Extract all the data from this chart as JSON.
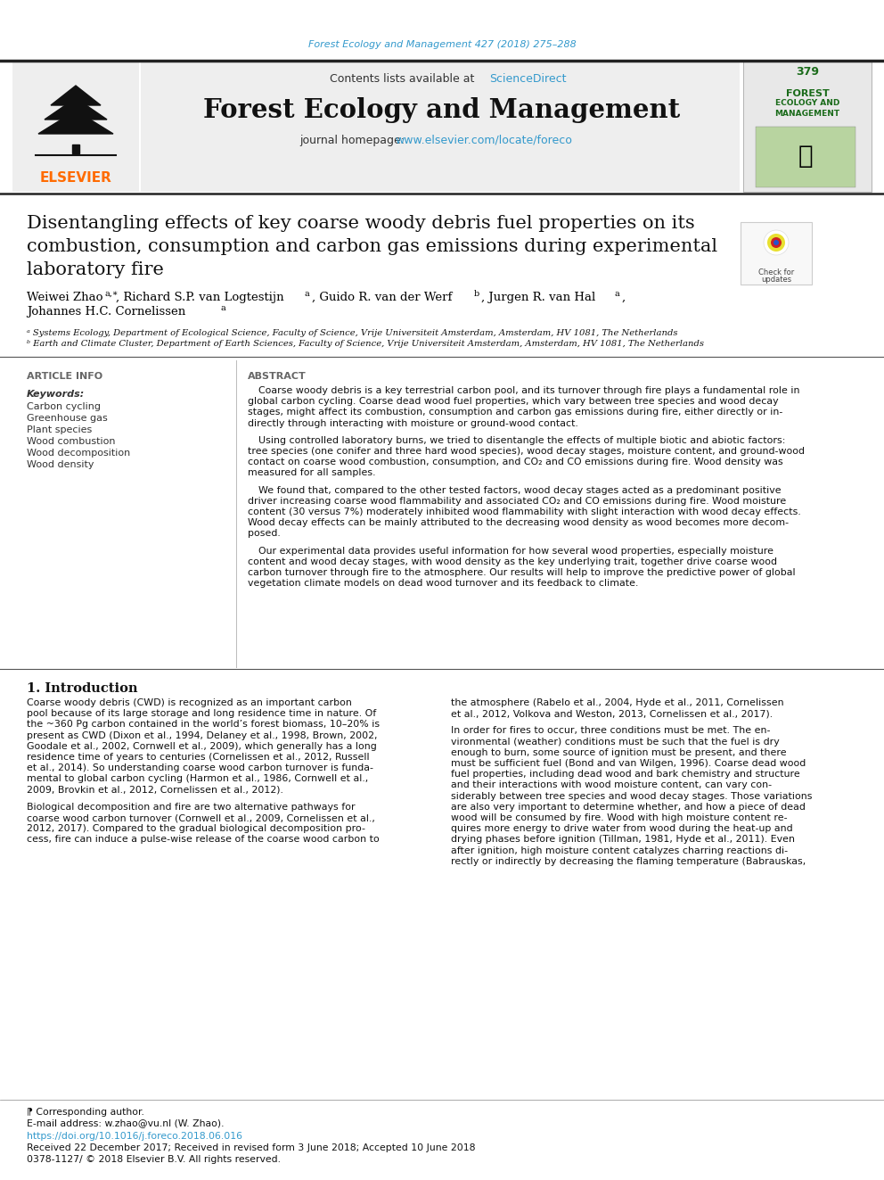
{
  "journal_header_text": "Forest Ecology and Management 427 (2018) 275–288",
  "journal_header_color": "#3399cc",
  "contents_text": "Contents lists available at ",
  "sciencedirect_text": "ScienceDirect",
  "journal_title": "Forest Ecology and Management",
  "homepage_label": "journal homepage: ",
  "homepage_url": "www.elsevier.com/locate/foreco",
  "homepage_color": "#3399cc",
  "article_title_line1": "Disentangling effects of key coarse woody debris fuel properties on its",
  "article_title_line2": "combustion, consumption and carbon gas emissions during experimental",
  "article_title_line3": "laboratory fire",
  "affil_a": "ᵃ Systems Ecology, Department of Ecological Science, Faculty of Science, Vrije Universiteit Amsterdam, Amsterdam, HV 1081, The Netherlands",
  "affil_b": "ᵇ Earth and Climate Cluster, Department of Earth Sciences, Faculty of Science, Vrije Universiteit Amsterdam, Amsterdam, HV 1081, The Netherlands",
  "article_info_label": "ARTICLE INFO",
  "keywords_label": "Keywords:",
  "keywords": [
    "Carbon cycling",
    "Greenhouse gas",
    "Plant species",
    "Wood combustion",
    "Wood decomposition",
    "Wood density"
  ],
  "abstract_label": "ABSTRACT",
  "abstract_p1": "Coarse woody debris is a key terrestrial carbon pool, and its turnover through fire plays a fundamental role in\nglobal carbon cycling. Coarse dead wood fuel properties, which vary between tree species and wood decay\nstages, might affect its combustion, consumption and carbon gas emissions during fire, either directly or in-\ndirectly through interacting with moisture or ground-wood contact.",
  "abstract_p2": "Using controlled laboratory burns, we tried to disentangle the effects of multiple biotic and abiotic factors:\ntree species (one conifer and three hard wood species), wood decay stages, moisture content, and ground-wood\ncontact on coarse wood combustion, consumption, and CO₂ and CO emissions during fire. Wood density was\nmeasured for all samples.",
  "abstract_p3": "We found that, compared to the other tested factors, wood decay stages acted as a predominant positive\ndriver increasing coarse wood flammability and associated CO₂ and CO emissions during fire. Wood moisture\ncontent (30 versus 7%) moderately inhibited wood flammability with slight interaction with wood decay effects.\nWood decay effects can be mainly attributed to the decreasing wood density as wood becomes more decom-\nposed.",
  "abstract_p4": "Our experimental data provides useful information for how several wood properties, especially moisture\ncontent and wood decay stages, with wood density as the key underlying trait, together drive coarse wood\ncarbon turnover through fire to the atmosphere. Our results will help to improve the predictive power of global\nvegetation climate models on dead wood turnover and its feedback to climate.",
  "section1_title": "1. Introduction",
  "intro_p1": "Coarse woody debris (CWD) is recognized as an important carbon\npool because of its large storage and long residence time in nature. Of\nthe ~360 Pg carbon contained in the world’s forest biomass, 10–20% is\npresent as CWD (Dixon et al., 1994, Delaney et al., 1998, Brown, 2002,\nGoodale et al., 2002, Cornwell et al., 2009), which generally has a long\nresidence time of years to centuries (Cornelissen et al., 2012, Russell\net al., 2014). So understanding coarse wood carbon turnover is funda-\nmental to global carbon cycling (Harmon et al., 1986, Cornwell et al.,\n2009, Brovkin et al., 2012, Cornelissen et al., 2012).",
  "intro_p2": "Biological decomposition and fire are two alternative pathways for\ncoarse wood carbon turnover (Cornwell et al., 2009, Cornelissen et al.,\n2012, 2017). Compared to the gradual biological decomposition pro-\ncess, fire can induce a pulse-wise release of the coarse wood carbon to",
  "intro_p3_right": "the atmosphere (Rabelo et al., 2004, Hyde et al., 2011, Cornelissen\net al., 2012, Volkova and Weston, 2013, Cornelissen et al., 2017).",
  "intro_p4_right": "In order for fires to occur, three conditions must be met. The en-\nvironmental (weather) conditions must be such that the fuel is dry\nenough to burn, some source of ignition must be present, and there\nmust be sufficient fuel (Bond and van Wilgen, 1996). Coarse dead wood\nfuel properties, including dead wood and bark chemistry and structure\nand their interactions with wood moisture content, can vary con-\nsiderably between tree species and wood decay stages. Those variations\nare also very important to determine whether, and how a piece of dead\nwood will be consumed by fire. Wood with high moisture content re-\nquires more energy to drive water from wood during the heat-up and\ndrying phases before ignition (Tillman, 1981, Hyde et al., 2011). Even\nafter ignition, high moisture content catalyzes charring reactions di-\nrectly or indirectly by decreasing the flaming temperature (Babrauskas,",
  "footnote_star": "⁋ Corresponding author.",
  "footnote_email": "E-mail address: w.zhao@vu.nl (W. Zhao).",
  "doi_text": "https://doi.org/10.1016/j.foreco.2018.06.016",
  "received_text": "Received 22 December 2017; Received in revised form 3 June 2018; Accepted 10 June 2018",
  "copyright_text": "0378-1127/ © 2018 Elsevier B.V. All rights reserved.",
  "bg_color": "#ffffff",
  "text_color": "#111111",
  "link_color": "#3399cc",
  "ref_color": "#3399cc",
  "elsevier_color": "#FF6B00",
  "cover_green": "#1a6b1a"
}
